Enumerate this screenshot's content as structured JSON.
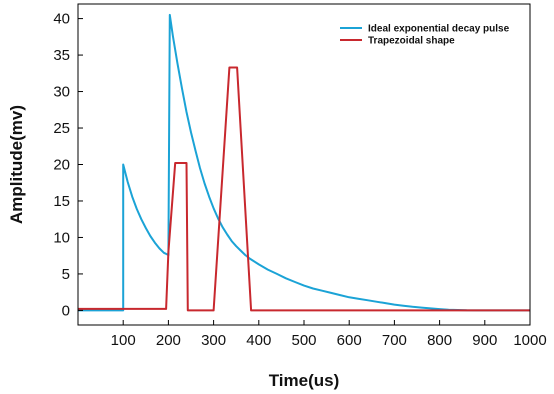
{
  "chart_data": {
    "type": "line",
    "title": "",
    "xlabel": "Time(us)",
    "ylabel": "Amplitude(mv)",
    "xlim": [
      0,
      1000
    ],
    "ylim": [
      -2,
      42
    ],
    "x_ticks": [
      100,
      200,
      300,
      400,
      500,
      600,
      700,
      800,
      900,
      1000
    ],
    "y_ticks": [
      0,
      5,
      10,
      15,
      20,
      25,
      30,
      35,
      40
    ],
    "grid": false,
    "legend_position": "top-right",
    "series": [
      {
        "name": "Ideal exponential decay pulse",
        "color": "#1ba3d6",
        "points": [
          [
            0,
            0
          ],
          [
            100,
            0
          ],
          [
            100,
            20
          ],
          [
            110,
            17.6
          ],
          [
            120,
            15.6
          ],
          [
            130,
            13.9
          ],
          [
            140,
            12.5
          ],
          [
            150,
            11.3
          ],
          [
            160,
            10.2
          ],
          [
            170,
            9.3
          ],
          [
            180,
            8.5
          ],
          [
            190,
            7.9
          ],
          [
            200,
            7.6
          ],
          [
            203,
            40.5
          ],
          [
            210,
            37.6
          ],
          [
            220,
            33.9
          ],
          [
            230,
            30.4
          ],
          [
            240,
            27.2
          ],
          [
            250,
            24.4
          ],
          [
            260,
            21.9
          ],
          [
            270,
            19.5
          ],
          [
            280,
            17.4
          ],
          [
            290,
            15.6
          ],
          [
            300,
            14.0
          ],
          [
            310,
            12.6
          ],
          [
            320,
            11.4
          ],
          [
            330,
            10.4
          ],
          [
            340,
            9.5
          ],
          [
            350,
            8.8
          ],
          [
            360,
            8.2
          ],
          [
            370,
            7.6
          ],
          [
            380,
            7.1
          ],
          [
            400,
            6.3
          ],
          [
            420,
            5.6
          ],
          [
            440,
            5.0
          ],
          [
            460,
            4.4
          ],
          [
            480,
            3.9
          ],
          [
            500,
            3.4
          ],
          [
            520,
            3.0
          ],
          [
            540,
            2.7
          ],
          [
            560,
            2.4
          ],
          [
            580,
            2.1
          ],
          [
            600,
            1.8
          ],
          [
            620,
            1.6
          ],
          [
            640,
            1.4
          ],
          [
            660,
            1.2
          ],
          [
            680,
            1.0
          ],
          [
            700,
            0.8
          ],
          [
            720,
            0.65
          ],
          [
            740,
            0.5
          ],
          [
            760,
            0.38
          ],
          [
            780,
            0.28
          ],
          [
            800,
            0.18
          ],
          [
            820,
            0.1
          ],
          [
            840,
            0.05
          ],
          [
            860,
            0.02
          ],
          [
            880,
            0
          ],
          [
            1000,
            0
          ]
        ]
      },
      {
        "name": "Trapezoidal shape",
        "color": "#c8282e",
        "points": [
          [
            0,
            0.2
          ],
          [
            195,
            0.2
          ],
          [
            200,
            8
          ],
          [
            215,
            20.2
          ],
          [
            240,
            20.2
          ],
          [
            243,
            0
          ],
          [
            300,
            0
          ],
          [
            335,
            33.3
          ],
          [
            352,
            33.3
          ],
          [
            383,
            0
          ],
          [
            1000,
            0
          ]
        ]
      }
    ]
  }
}
